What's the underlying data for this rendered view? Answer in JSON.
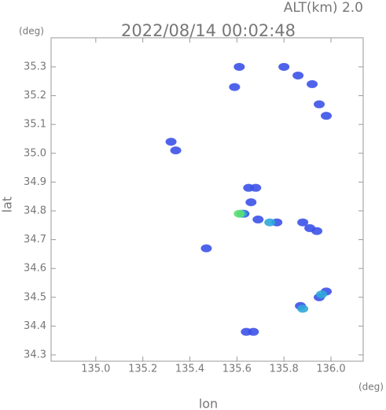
{
  "chart_data": {
    "type": "scatter",
    "title": "2022/08/14 00:02:48",
    "subtitle": "ALT(km)  2.0",
    "x_label": "lon",
    "y_label": "lat",
    "x_unit": "(deg)",
    "y_unit": "(deg)",
    "xlim": [
      134.81,
      136.137
    ],
    "ylim": [
      34.278,
      35.401
    ],
    "xticks": [
      {
        "value": 135,
        "label": "135.0"
      },
      135.2,
      135.4,
      135.6,
      135.8,
      {
        "value": 136,
        "label": "136.0"
      }
    ],
    "yticks": [
      34.3,
      34.4,
      34.5,
      34.6,
      34.7,
      34.8,
      34.9,
      {
        "value": 35,
        "label": "35.0"
      },
      35.1,
      35.2,
      35.3
    ],
    "series": [
      {
        "color": "#3c52e8",
        "x": [
          135.61,
          135.59,
          135.8,
          135.86,
          135.92,
          135.95,
          135.98,
          135.32,
          135.34,
          135.65,
          135.68,
          135.66,
          135.63,
          135.69,
          135.77,
          135.88,
          135.91,
          135.94,
          135.47,
          135.87,
          135.95,
          135.98,
          135.64,
          135.67
        ],
        "values": [
          35.3,
          35.23,
          35.3,
          35.27,
          35.24,
          35.17,
          35.13,
          35.04,
          35.01,
          34.88,
          34.88,
          34.83,
          34.79,
          34.77,
          34.76,
          34.76,
          34.74,
          34.73,
          34.67,
          34.47,
          34.5,
          34.52,
          34.38,
          34.38
        ]
      },
      {
        "color": "#2fa8d8",
        "x": [
          135.88,
          135.62,
          135.74,
          135.96
        ],
        "values": [
          34.46,
          34.79,
          34.76,
          34.51
        ]
      },
      {
        "color": "#5fe070",
        "x": [
          135.61
        ],
        "values": [
          34.79
        ]
      }
    ]
  }
}
